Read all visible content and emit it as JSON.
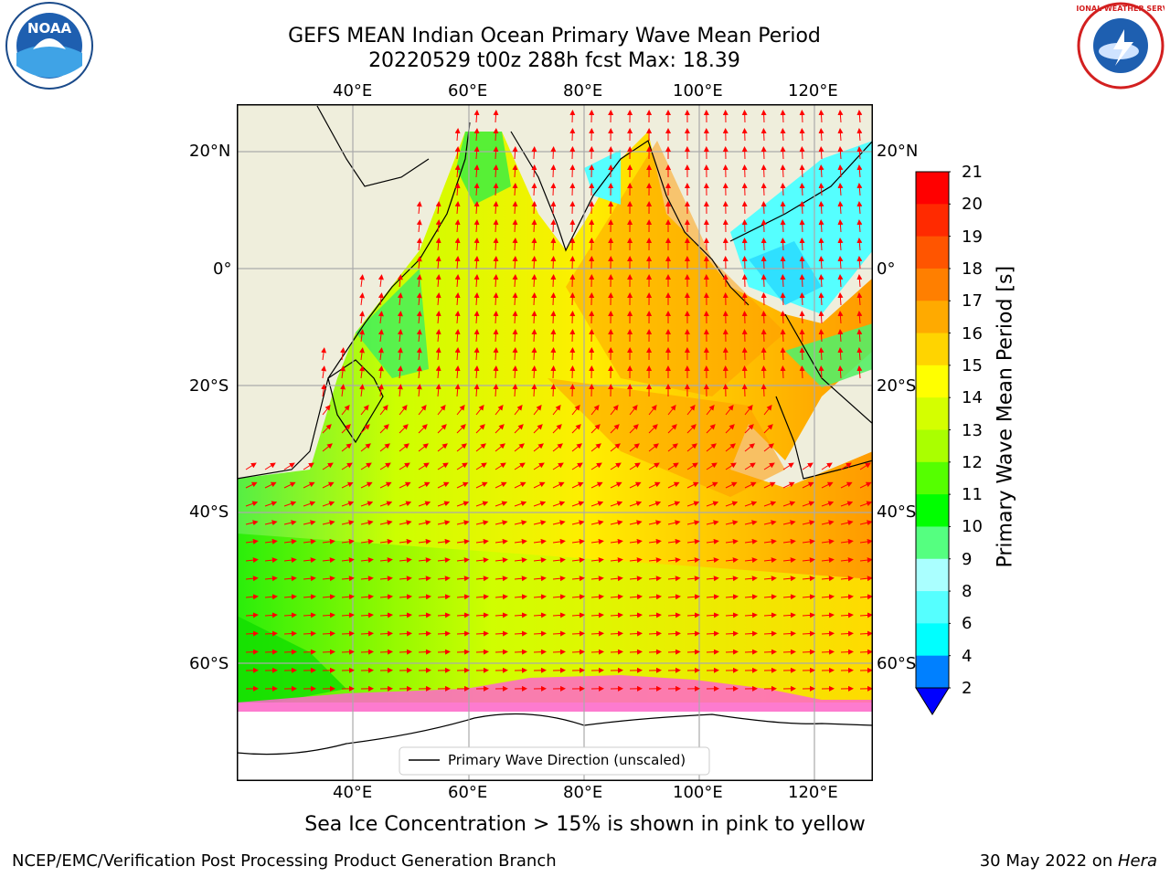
{
  "title_line1": "GEFS MEAN Indian Ocean Primary Wave Mean Period",
  "title_line2": "20220529 t00z 288h fcst   Max: 18.39",
  "logos": {
    "left": {
      "name": "NOAA",
      "text": "NOAA"
    },
    "right": {
      "name": "National Weather Service",
      "ring_text": "NATIONAL WEATHER SERVICE"
    }
  },
  "axes": {
    "lon_ticks_top": [
      "40°E",
      "60°E",
      "80°E",
      "100°E",
      "120°E"
    ],
    "lon_ticks_bottom": [
      "40°E",
      "60°E",
      "80°E",
      "100°E",
      "120°E"
    ],
    "lat_ticks_left": [
      "20°N",
      "0°",
      "20°S",
      "40°S",
      "60°S"
    ],
    "lat_ticks_right": [
      "20°N",
      "0°",
      "20°S",
      "40°S",
      "60°S"
    ]
  },
  "legend": {
    "label": "Primary Wave Direction (unscaled)"
  },
  "colorbar": {
    "label": "Primary Wave Mean Period [s]",
    "ticks": [
      "21",
      "20",
      "19",
      "18",
      "17",
      "16",
      "15",
      "14",
      "13",
      "12",
      "11",
      "10",
      "9",
      "8",
      "6",
      "4",
      "2"
    ],
    "colors": [
      "#ff0000",
      "#ff2a00",
      "#ff5500",
      "#ff7f00",
      "#ffaa00",
      "#ffd400",
      "#ffff00",
      "#d4ff00",
      "#aaff00",
      "#55ff00",
      "#00ff00",
      "#55ff80",
      "#aaffff",
      "#55ffff",
      "#00ffff",
      "#0080ff",
      "#0000ff"
    ]
  },
  "subtitle": "Sea Ice Concentration > 15% is shown in pink to yellow",
  "footer_left": "NCEP/EMC/Verification Post Processing Product Generation Branch",
  "footer_right_prefix": "30 May 2022 on ",
  "footer_right_host": "Hera"
}
